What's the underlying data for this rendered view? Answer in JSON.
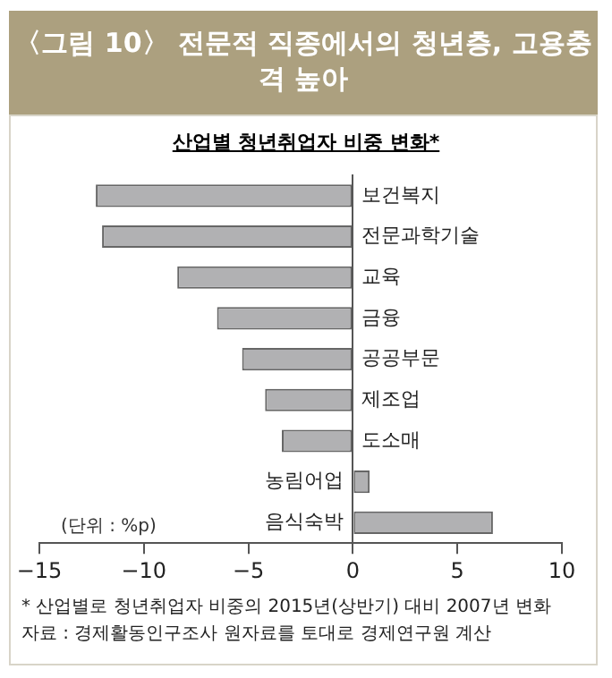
{
  "chart_data": {
    "type": "bar",
    "orientation": "horizontal",
    "title": "〈그림 10〉 전문적 직종에서의 청년층, 고용충격 높아",
    "subtitle": "산업별 청년취업자 비중 변화*",
    "categories": [
      "보건복지",
      "전문과학기술",
      "교육",
      "금융",
      "공공부문",
      "제조업",
      "도소매",
      "농림어업",
      "음식숙박"
    ],
    "values": [
      -12.3,
      -12.0,
      -8.4,
      -6.5,
      -5.3,
      -4.2,
      -3.4,
      0.8,
      6.7
    ],
    "color": "#b1b1b3",
    "xlim": [
      -15,
      10
    ],
    "xticks": [
      -15,
      -10,
      -5,
      0,
      5,
      10
    ],
    "grid": false,
    "legend": false,
    "annotations": [
      "(단위 : %p)",
      "* 산업별로 청년취업자 비중의 2015년(상반기) 대비 2007년 변화",
      "자료 : 경제활동인구조사 원자료를 토대로 경제연구원 계산"
    ]
  }
}
